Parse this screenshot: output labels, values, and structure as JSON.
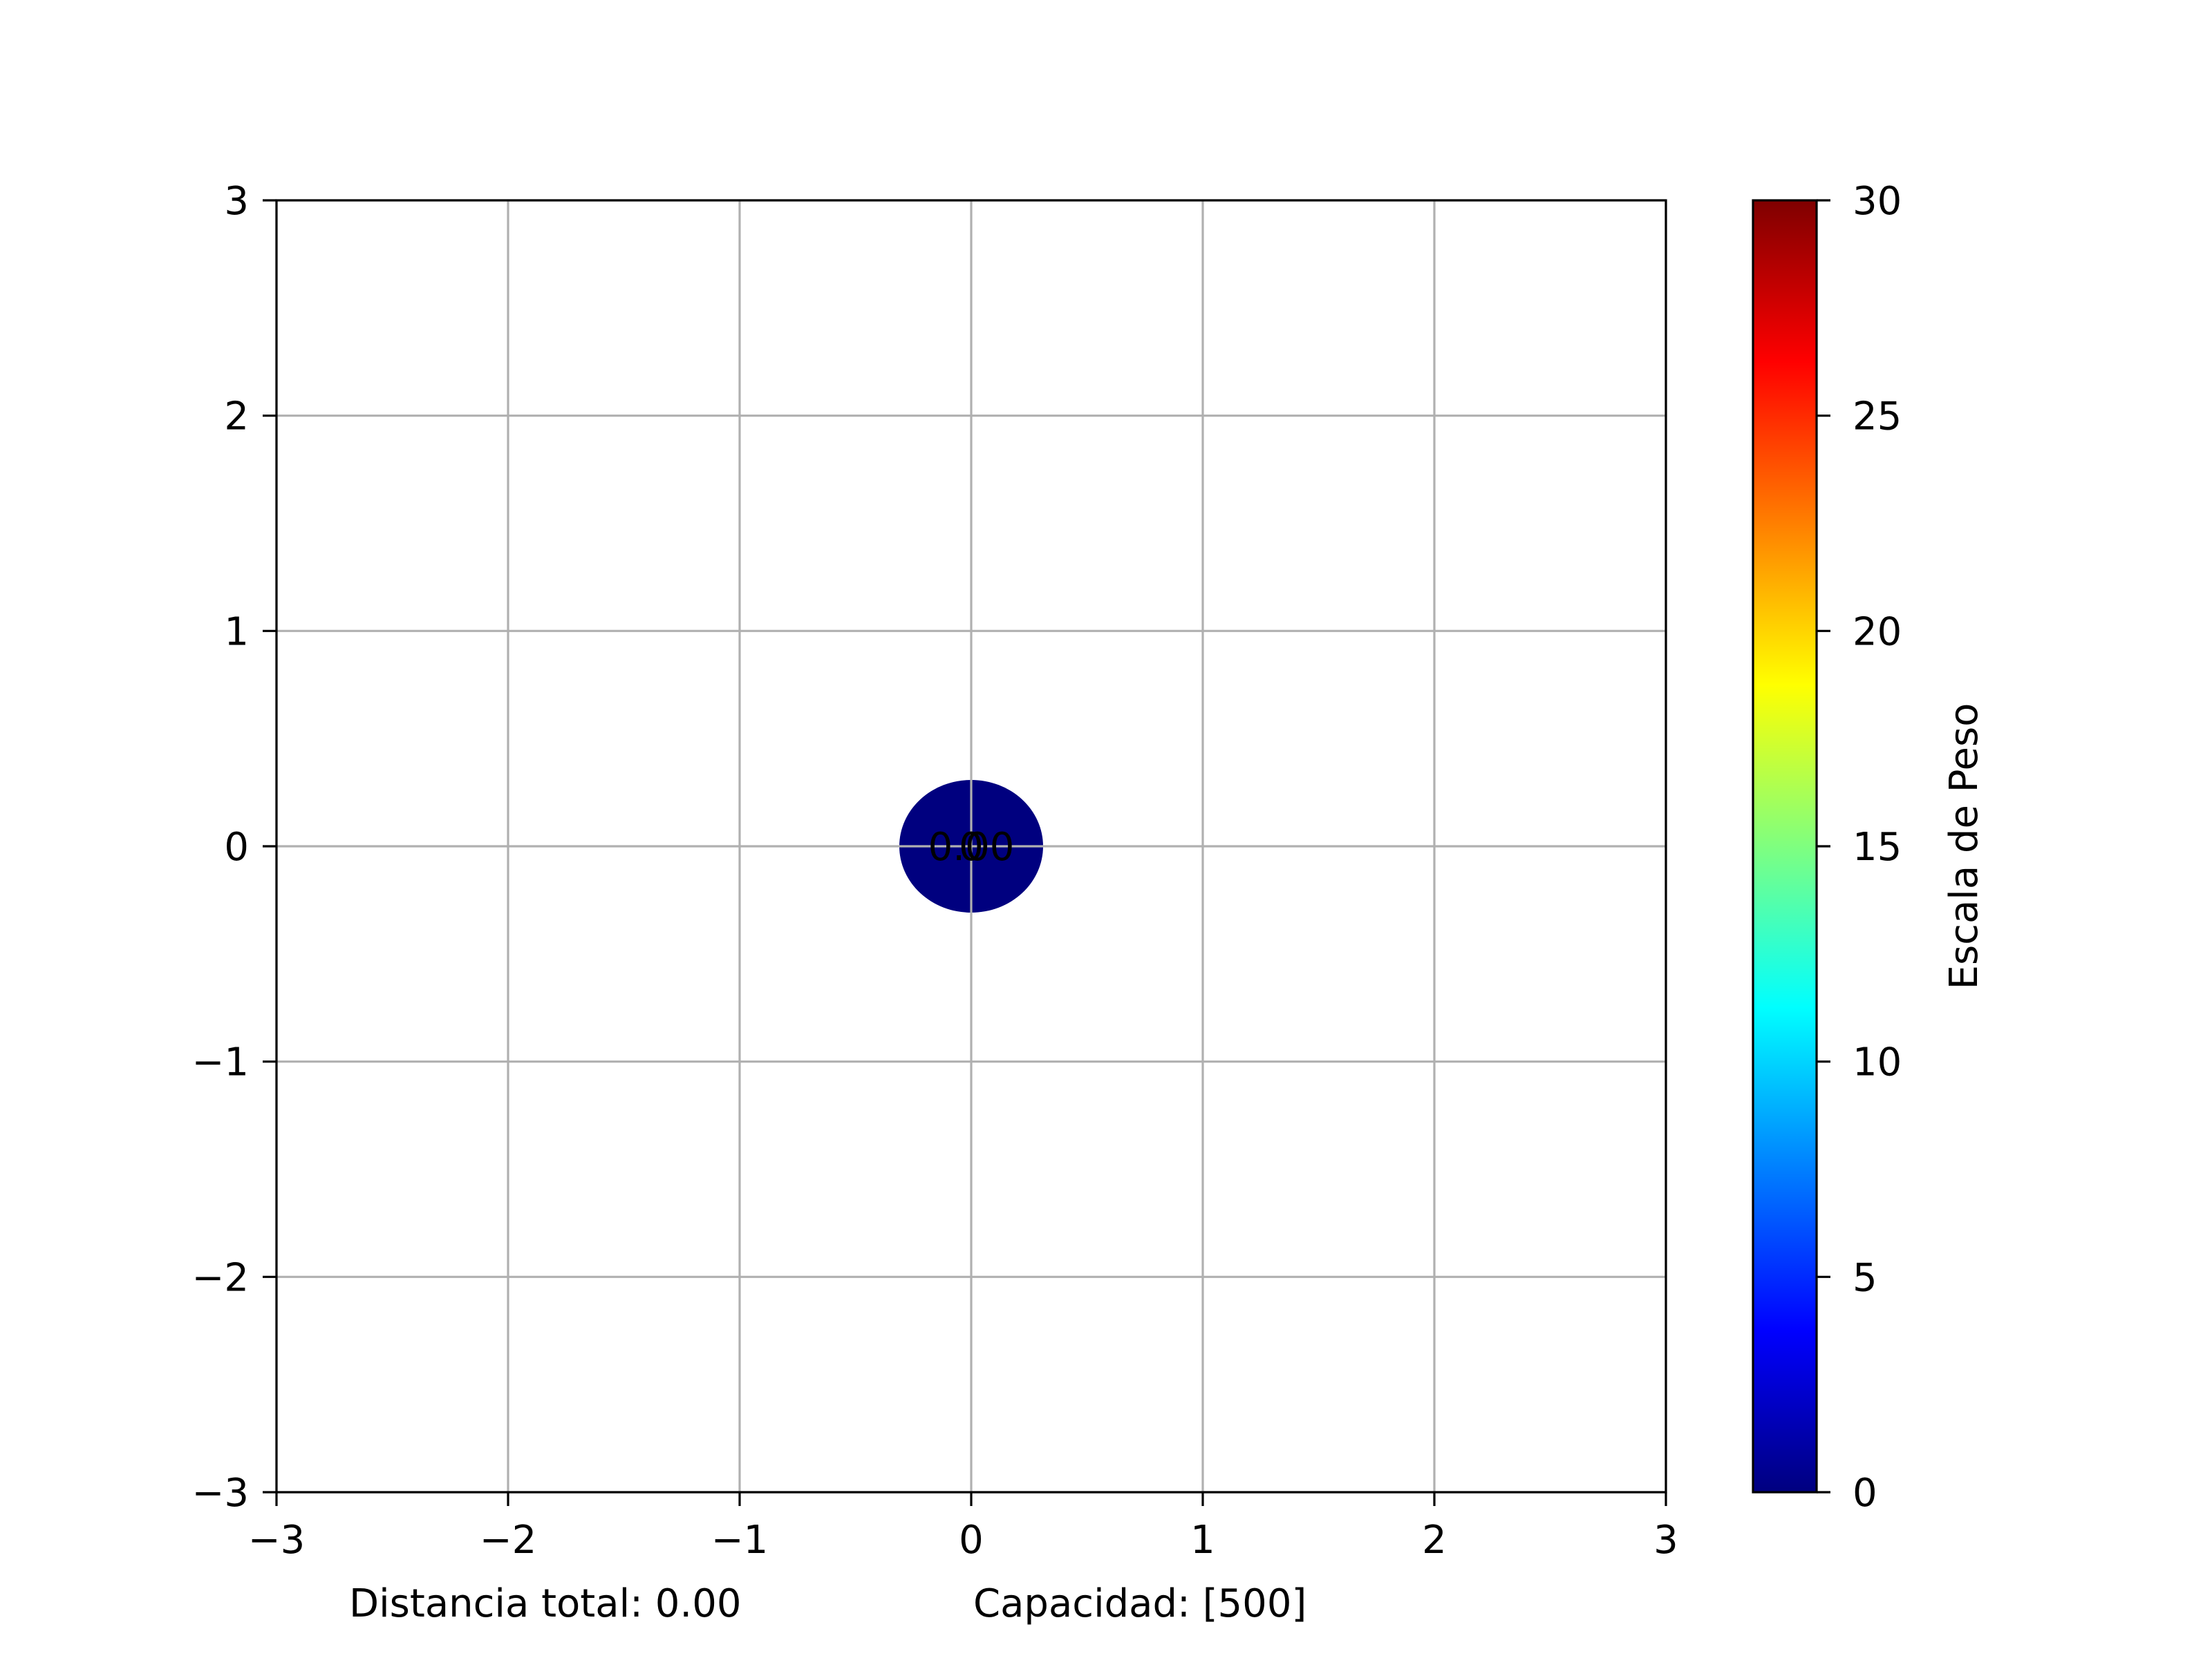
{
  "chart_data": {
    "type": "scatter",
    "title": "",
    "xlabel": "",
    "ylabel": "",
    "xlim": [
      -3,
      3
    ],
    "ylim": [
      -3,
      3
    ],
    "grid": true,
    "xticks": [
      -3,
      -2,
      -1,
      0,
      1,
      2,
      3
    ],
    "yticks": [
      -3,
      -2,
      -1,
      0,
      1,
      2,
      3
    ],
    "xtick_labels": [
      "−3",
      "−2",
      "−1",
      "0",
      "1",
      "2",
      "3"
    ],
    "ytick_labels": [
      "−3",
      "−2",
      "−1",
      "0",
      "1",
      "2",
      "3"
    ],
    "points": [
      {
        "x": 0,
        "y": 0,
        "weight": 0,
        "color": "#00007f",
        "labels": [
          "0.00",
          "0"
        ]
      }
    ],
    "colorbar": {
      "label": "Escala de Peso",
      "range": [
        0,
        30
      ],
      "ticks": [
        0,
        5,
        10,
        15,
        20,
        25,
        30
      ],
      "colormap": "jet",
      "stops": [
        "#00007f",
        "#0000ff",
        "#007fff",
        "#00ffff",
        "#7fff7f",
        "#ffff00",
        "#ff7f00",
        "#ff0000",
        "#7f0000"
      ]
    },
    "footer": {
      "distance": "Distancia total: 0.00",
      "capacity": "Capacidad: [500]"
    },
    "colors": {
      "grid": "#b0b0b0",
      "axis": "#000000"
    }
  }
}
